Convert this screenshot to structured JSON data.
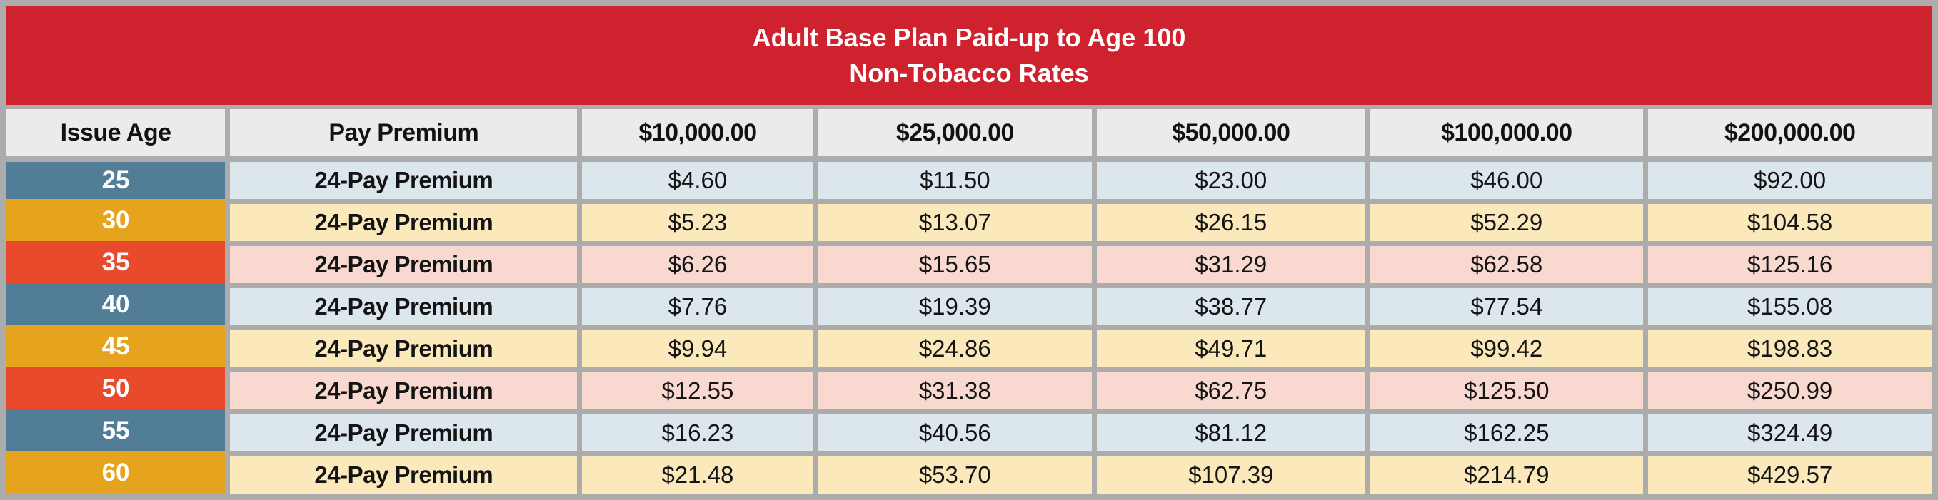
{
  "banner": {
    "title_line1": "Adult Base Plan Paid-up to Age 100",
    "title_line2": "Non-Tobacco Rates",
    "bg_color": "#CE222F",
    "text_color": "#FFFFFF"
  },
  "colors": {
    "frame_gray": "#ACACAC",
    "header_cell_bg": "#EBEBEB",
    "text_dark": "#141414"
  },
  "table": {
    "columns": [
      "Issue Age",
      "Pay Premium",
      "$10,000.00",
      "$25,000.00",
      "$50,000.00",
      "$100,000.00",
      "$200,000.00"
    ],
    "themes": {
      "blue": {
        "age_bg": "#527D96",
        "row_bg": "#DCE7ED"
      },
      "gold": {
        "age_bg": "#E6A31D",
        "row_bg": "#FCE9BB"
      },
      "red": {
        "age_bg": "#E94A2B",
        "row_bg": "#F9D9CF"
      }
    },
    "rows": [
      {
        "issue_age": "25",
        "pay_premium": "24-Pay Premium",
        "theme": "blue",
        "values": [
          "$4.60",
          "$11.50",
          "$23.00",
          "$46.00",
          "$92.00"
        ]
      },
      {
        "issue_age": "30",
        "pay_premium": "24-Pay Premium",
        "theme": "gold",
        "values": [
          "$5.23",
          "$13.07",
          "$26.15",
          "$52.29",
          "$104.58"
        ]
      },
      {
        "issue_age": "35",
        "pay_premium": "24-Pay Premium",
        "theme": "red",
        "values": [
          "$6.26",
          "$15.65",
          "$31.29",
          "$62.58",
          "$125.16"
        ]
      },
      {
        "issue_age": "40",
        "pay_premium": "24-Pay Premium",
        "theme": "blue",
        "values": [
          "$7.76",
          "$19.39",
          "$38.77",
          "$77.54",
          "$155.08"
        ]
      },
      {
        "issue_age": "45",
        "pay_premium": "24-Pay Premium",
        "theme": "gold",
        "values": [
          "$9.94",
          "$24.86",
          "$49.71",
          "$99.42",
          "$198.83"
        ]
      },
      {
        "issue_age": "50",
        "pay_premium": "24-Pay Premium",
        "theme": "red",
        "values": [
          "$12.55",
          "$31.38",
          "$62.75",
          "$125.50",
          "$250.99"
        ]
      },
      {
        "issue_age": "55",
        "pay_premium": "24-Pay Premium",
        "theme": "blue",
        "values": [
          "$16.23",
          "$40.56",
          "$81.12",
          "$162.25",
          "$324.49"
        ]
      },
      {
        "issue_age": "60",
        "pay_premium": "24-Pay Premium",
        "theme": "gold",
        "values": [
          "$21.48",
          "$53.70",
          "$107.39",
          "$214.79",
          "$429.57"
        ]
      }
    ]
  }
}
